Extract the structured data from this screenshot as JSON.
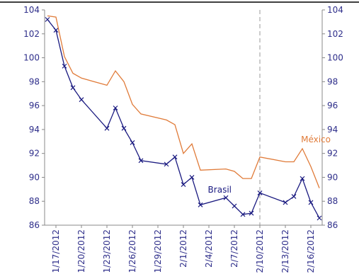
{
  "chart_data": {
    "type": "line",
    "x": [
      "1/16/2012",
      "1/17/2012",
      "1/18/2012",
      "1/19/2012",
      "1/20/2012",
      "1/23/2012",
      "1/24/2012",
      "1/25/2012",
      "1/26/2012",
      "1/27/2012",
      "1/30/2012",
      "1/31/2012",
      "2/1/2012",
      "2/2/2012",
      "2/3/2012",
      "2/6/2012",
      "2/7/2012",
      "2/8/2012",
      "2/9/2012",
      "2/10/2012",
      "2/13/2012",
      "2/14/2012",
      "2/15/2012",
      "2/16/2012",
      "2/17/2012"
    ],
    "series": [
      {
        "name": "Brasil",
        "color": "#1a1a80",
        "marker": "x",
        "values": [
          103.2,
          102.3,
          99.3,
          97.5,
          96.5,
          94.1,
          95.8,
          94.1,
          92.9,
          91.4,
          91.1,
          91.7,
          89.4,
          90.0,
          87.7,
          88.3,
          87.6,
          86.9,
          87.0,
          88.7,
          87.9,
          88.4,
          89.9,
          87.9,
          86.6
        ]
      },
      {
        "name": "México",
        "color": "#e07b39",
        "marker": "none",
        "values": [
          103.5,
          103.4,
          100.1,
          98.7,
          98.3,
          97.7,
          98.9,
          98.0,
          96.1,
          95.3,
          94.8,
          94.4,
          92.0,
          92.8,
          90.6,
          90.7,
          90.5,
          89.9,
          89.9,
          91.7,
          91.3,
          91.3,
          92.4,
          90.9,
          89.1
        ]
      }
    ],
    "xlim": [
      "1/16/2012",
      "2/17/2012"
    ],
    "xticks": [
      "1/17/2012",
      "1/20/2012",
      "1/23/2012",
      "1/26/2012",
      "1/29/2012",
      "2/1/2012",
      "2/4/2012",
      "2/7/2012",
      "2/10/2012",
      "2/13/2012",
      "2/16/2012"
    ],
    "ylim": [
      86,
      104
    ],
    "yticks": [
      86,
      88,
      90,
      92,
      94,
      96,
      98,
      100,
      102,
      104
    ],
    "y2lim": [
      86,
      104
    ],
    "y2ticks": [
      86,
      88,
      90,
      92,
      94,
      96,
      98,
      100,
      102,
      104
    ],
    "vline": "2/10/2012"
  }
}
